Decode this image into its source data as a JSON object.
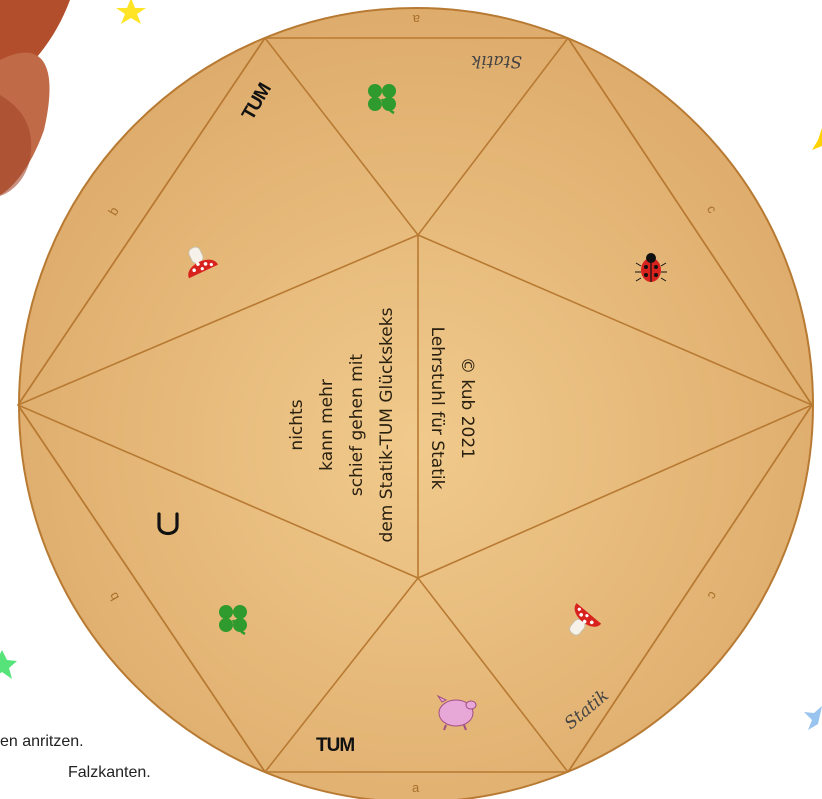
{
  "colors": {
    "disc_fill": "#e7ba7c",
    "disc_stroke": "#b87a32",
    "edge_letters": "#a8702a",
    "center_text": "#2a2010",
    "caption_text": "#222222"
  },
  "center_text_left": {
    "lines": [
      "nichts",
      "kann mehr",
      "schief gehen mit",
      "dem Statik-TUM  Glückskeks"
    ]
  },
  "center_text_right": {
    "lines": [
      "© kub 2021",
      "Lehrstuhl für Statik"
    ]
  },
  "edge_letters": {
    "top": "a",
    "bottom": "a",
    "left_upper": "b",
    "left_lower": "b",
    "right_upper": "c",
    "right_lower": "c"
  },
  "logos": {
    "tum_top": "TUM",
    "tum_bottom": "TUM",
    "statik_top": "Statik",
    "statik_bottom": "Statik"
  },
  "stickers": [
    {
      "name": "clover-icon"
    },
    {
      "name": "ladybug-icon"
    },
    {
      "name": "mushroom-icon"
    },
    {
      "name": "horseshoe-icon"
    },
    {
      "name": "clover-icon"
    },
    {
      "name": "mushroom-icon"
    },
    {
      "name": "pig-icon"
    }
  ],
  "captions": [
    "en anritzen.",
    "Falzkanten."
  ]
}
